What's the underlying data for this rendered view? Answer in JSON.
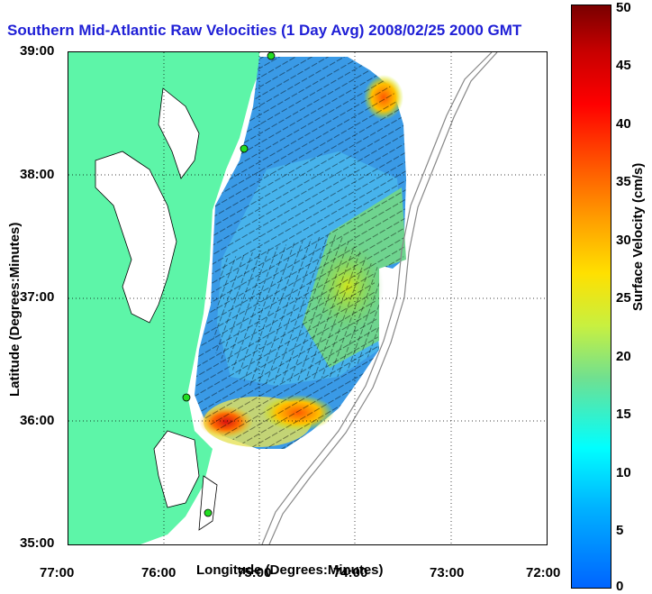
{
  "title": "Southern Mid-Atlantic Raw Velocities (1 Day Avg) 2008/02/25 2000 GMT",
  "x_axis": {
    "label": "Longitude (Degrees:Minutes)",
    "ticks": [
      "77:00",
      "76:00",
      "75:00",
      "74:00",
      "73:00",
      "72:00"
    ]
  },
  "y_axis": {
    "label": "Latitude (Degrees:Minutes)",
    "ticks": [
      "39:00",
      "38:00",
      "37:00",
      "36:00",
      "35:00"
    ]
  },
  "colorbar": {
    "label": "Surface Velocity (cm/s)",
    "ticks": [
      "50",
      "45",
      "40",
      "35",
      "30",
      "25",
      "20",
      "15",
      "10",
      "5",
      "0"
    ],
    "min": 0,
    "max": 50
  },
  "map": {
    "land_color": "#5df5a8",
    "grid": "dotted",
    "station_marker_color": "#22dd22",
    "bathymetry_color": "#888888"
  }
}
